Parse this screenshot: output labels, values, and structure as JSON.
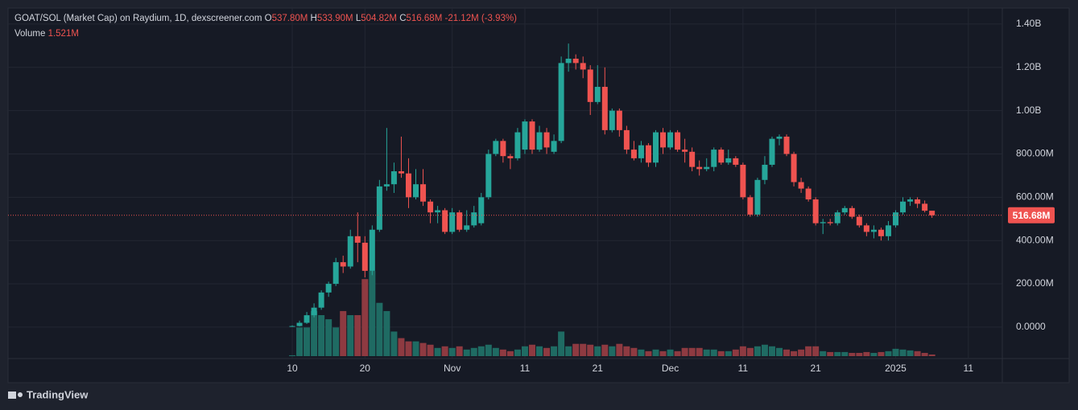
{
  "chart_data": {
    "type": "candlestick",
    "title": "GOAT/SOL (Market Cap) on Raydium, 1D, dexscreener.com",
    "ohlc_legend": [
      {
        "key": "O",
        "value": "537.80M"
      },
      {
        "key": "H",
        "value": "533.90M"
      },
      {
        "key": "L",
        "value": "504.82M"
      },
      {
        "key": "C",
        "value": "516.68M"
      }
    ],
    "change": "-21.12M (-3.93%)",
    "volume_label": "Volume",
    "volume_value": "1.521M",
    "last_price_label": "516.68M",
    "brand": "TradingView",
    "up_color": "#26a69a",
    "down_color": "#ef5350",
    "volume_up_color": "#1f6b63",
    "volume_down_color": "#8e3a41",
    "grid": true,
    "x": [
      "Oct 10",
      "Oct 11",
      "Oct 12",
      "Oct 13",
      "Oct 14",
      "Oct 15",
      "Oct 16",
      "Oct 17",
      "Oct 18",
      "Oct 19",
      "Oct 20",
      "Oct 21",
      "Oct 22",
      "Oct 23",
      "Oct 24",
      "Oct 25",
      "Oct 26",
      "Oct 27",
      "Oct 28",
      "Oct 29",
      "Oct 30",
      "Oct 31",
      "Nov 1",
      "Nov 2",
      "Nov 3",
      "Nov 4",
      "Nov 5",
      "Nov 6",
      "Nov 7",
      "Nov 8",
      "Nov 9",
      "Nov 10",
      "Nov 11",
      "Nov 12",
      "Nov 13",
      "Nov 14",
      "Nov 15",
      "Nov 16",
      "Nov 17",
      "Nov 18",
      "Nov 19",
      "Nov 20",
      "Nov 21",
      "Nov 22",
      "Nov 23",
      "Nov 24",
      "Nov 25",
      "Nov 26",
      "Nov 27",
      "Nov 28",
      "Nov 29",
      "Nov 30",
      "Dec 1",
      "Dec 2",
      "Dec 3",
      "Dec 4",
      "Dec 5",
      "Dec 6",
      "Dec 7",
      "Dec 8",
      "Dec 9",
      "Dec 10",
      "Dec 11",
      "Dec 12",
      "Dec 13",
      "Dec 14",
      "Dec 15",
      "Dec 16",
      "Dec 17",
      "Dec 18",
      "Dec 19",
      "Dec 20",
      "Dec 21",
      "Dec 22",
      "Dec 23",
      "Dec 24",
      "Dec 25",
      "Dec 26",
      "Dec 27",
      "Dec 28",
      "Dec 29",
      "Dec 30",
      "Dec 31",
      "Jan 1",
      "Jan 2",
      "Jan 3",
      "Jan 4",
      "Jan 5",
      "Jan 6"
    ],
    "open": [
      2,
      5,
      20,
      55,
      90,
      160,
      200,
      300,
      280,
      420,
      390,
      260,
      450,
      650,
      660,
      720,
      710,
      600,
      660,
      580,
      530,
      540,
      440,
      530,
      450,
      470,
      480,
      600,
      800,
      860,
      790,
      780,
      820,
      950,
      820,
      900,
      810,
      860,
      1220,
      1240,
      1220,
      1190,
      1040,
      1110,
      910,
      1000,
      910,
      820,
      780,
      840,
      760,
      900,
      830,
      900,
      820,
      810,
      740,
      730,
      740,
      820,
      760,
      780,
      750,
      600,
      520,
      680,
      750,
      870,
      880,
      800,
      670,
      640,
      590,
      480,
      485,
      480,
      530,
      550,
      510,
      470,
      440,
      450,
      420,
      470,
      530,
      580,
      590,
      570,
      537.8
    ],
    "high": [
      8,
      30,
      70,
      110,
      170,
      210,
      320,
      330,
      450,
      530,
      420,
      470,
      680,
      920,
      760,
      880,
      780,
      730,
      730,
      590,
      560,
      550,
      550,
      540,
      540,
      560,
      620,
      820,
      870,
      870,
      800,
      920,
      960,
      960,
      930,
      920,
      890,
      1250,
      1310,
      1260,
      1250,
      1210,
      1210,
      1200,
      1010,
      1010,
      930,
      860,
      860,
      850,
      910,
      920,
      910,
      910,
      870,
      830,
      770,
      780,
      830,
      830,
      820,
      790,
      760,
      610,
      690,
      790,
      880,
      890,
      890,
      810,
      690,
      650,
      600,
      500,
      500,
      540,
      560,
      560,
      520,
      480,
      470,
      460,
      490,
      540,
      600,
      600,
      600,
      585,
      533.9
    ],
    "low": [
      1,
      3,
      15,
      45,
      80,
      140,
      190,
      250,
      270,
      300,
      230,
      240,
      440,
      630,
      620,
      690,
      550,
      590,
      560,
      480,
      480,
      430,
      430,
      440,
      440,
      460,
      470,
      590,
      790,
      760,
      730,
      770,
      800,
      800,
      810,
      800,
      800,
      850,
      1180,
      1190,
      1150,
      980,
      1030,
      890,
      900,
      880,
      800,
      770,
      760,
      740,
      740,
      800,
      820,
      810,
      760,
      720,
      700,
      720,
      720,
      750,
      750,
      740,
      590,
      510,
      510,
      660,
      740,
      840,
      790,
      650,
      620,
      580,
      470,
      430,
      470,
      470,
      520,
      500,
      460,
      420,
      410,
      400,
      400,
      460,
      520,
      560,
      550,
      530,
      504.82
    ],
    "close": [
      5,
      20,
      55,
      90,
      160,
      200,
      300,
      280,
      420,
      390,
      260,
      450,
      650,
      660,
      720,
      710,
      600,
      660,
      580,
      530,
      540,
      440,
      530,
      450,
      470,
      530,
      600,
      800,
      860,
      790,
      780,
      900,
      950,
      820,
      900,
      830,
      860,
      1220,
      1240,
      1220,
      1190,
      1040,
      1110,
      910,
      1000,
      910,
      820,
      780,
      840,
      760,
      900,
      830,
      900,
      820,
      810,
      740,
      730,
      740,
      820,
      760,
      780,
      750,
      600,
      520,
      680,
      750,
      870,
      880,
      800,
      670,
      640,
      590,
      480,
      485,
      480,
      530,
      550,
      510,
      470,
      440,
      450,
      420,
      470,
      530,
      580,
      590,
      570,
      537.8,
      516.68
    ],
    "volume": [
      0.8,
      26.6,
      26.6,
      41.8,
      38,
      34.2,
      26.6,
      41.8,
      38,
      38,
      71.4,
      79,
      49.4,
      41.8,
      22.8,
      16.7,
      13.7,
      13.7,
      12.2,
      10.6,
      7.6,
      9.1,
      7.6,
      9.1,
      6.1,
      7.6,
      9.1,
      10.6,
      7.6,
      6.1,
      4.6,
      6.1,
      9.1,
      10.6,
      9.1,
      7.6,
      9.1,
      22.8,
      9.1,
      11.4,
      11.4,
      10.6,
      9.1,
      10.6,
      9.1,
      11.4,
      9.1,
      7.6,
      6.1,
      4.6,
      6.1,
      4.6,
      6.1,
      4.6,
      7.6,
      7.6,
      7.6,
      6.1,
      6.1,
      4.6,
      4.6,
      6.1,
      9.1,
      7.6,
      9.1,
      10.6,
      9.1,
      7.6,
      6.1,
      4.6,
      6.1,
      9.1,
      9.1,
      4.6,
      3.8,
      3.8,
      3.8,
      3,
      3,
      3.8,
      3,
      3.8,
      4.6,
      6.8,
      6.1,
      5.3,
      4.6,
      3,
      1.521
    ],
    "ylim": [
      -134,
      1474
    ],
    "yticks": [
      {
        "value": 1400,
        "label": "1.40B"
      },
      {
        "value": 1200,
        "label": "1.20B"
      },
      {
        "value": 1000,
        "label": "1.00B"
      },
      {
        "value": 800,
        "label": "800.00M"
      },
      {
        "value": 600,
        "label": "600.00M"
      },
      {
        "value": 400,
        "label": "400.00M"
      },
      {
        "value": 200,
        "label": "200.00M"
      },
      {
        "value": 0,
        "label": "0.0000"
      }
    ],
    "xticks": [
      {
        "value": "Oct 10",
        "label": "10"
      },
      {
        "value": "Oct 20",
        "label": "20"
      },
      {
        "value": "Nov 1",
        "label": "Nov"
      },
      {
        "value": "Nov 11",
        "label": "11"
      },
      {
        "value": "Nov 21",
        "label": "21"
      },
      {
        "value": "Dec 1",
        "label": "Dec"
      },
      {
        "value": "Dec 11",
        "label": "11"
      },
      {
        "value": "Dec 21",
        "label": "21"
      },
      {
        "value": "Jan 1",
        "label": "2025"
      },
      {
        "value": "Jan 11",
        "label": "11"
      }
    ]
  }
}
